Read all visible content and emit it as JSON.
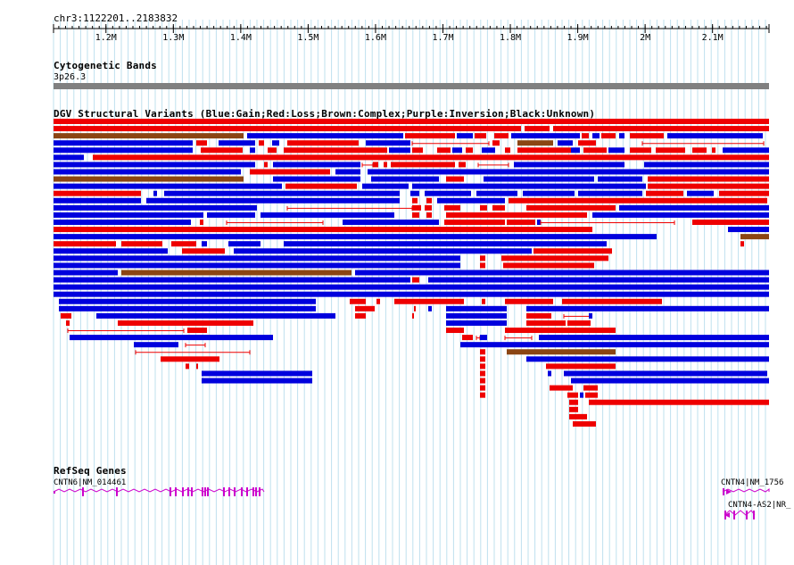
{
  "locus": "chr3:1122201..2183832",
  "ruler": {
    "ticks": [
      {
        "pos": 1200000,
        "label": "1.2M"
      },
      {
        "pos": 1300000,
        "label": "1.3M"
      },
      {
        "pos": 1400000,
        "label": "1.4M"
      },
      {
        "pos": 1500000,
        "label": "1.5M"
      },
      {
        "pos": 1600000,
        "label": "1.6M"
      },
      {
        "pos": 1700000,
        "label": "1.7M"
      },
      {
        "pos": 1800000,
        "label": "1.8M"
      },
      {
        "pos": 1900000,
        "label": "1.9M"
      },
      {
        "pos": 2000000,
        "label": "2M"
      },
      {
        "pos": 2100000,
        "label": "2.1M"
      }
    ]
  },
  "cytoband": {
    "title": "Cytogenetic Bands",
    "band": "3p26.3",
    "color": "#808080"
  },
  "dgv": {
    "title": "DGV Structural Variants (Blue:Gain;Red:Loss;Brown:Complex;Purple:Inversion;Black:Unknown)",
    "colors": {
      "gain": "#0000dd",
      "loss": "#ee0000",
      "complex": "#8b4513",
      "inversion": "#800080",
      "unknown": "#000000"
    },
    "rows": [
      [
        [
          "loss",
          60,
          862
        ]
      ],
      [
        [
          "loss",
          60,
          584
        ],
        [
          "loss",
          588,
          616
        ],
        [
          "loss",
          620,
          862
        ]
      ],
      [
        [
          "complex",
          60,
          273
        ],
        [
          "gain",
          277,
          452
        ],
        [
          "loss",
          454,
          510
        ],
        [
          "gain",
          512,
          530
        ],
        [
          "loss",
          532,
          545
        ],
        [
          "loss",
          554,
          570
        ],
        [
          "gain",
          573,
          650
        ],
        [
          "loss",
          652,
          660
        ],
        [
          "gain",
          664,
          672
        ],
        [
          "loss",
          674,
          690
        ],
        [
          "gain",
          694,
          700
        ],
        [
          "loss",
          706,
          744
        ],
        [
          "gain",
          748,
          855
        ]
      ],
      [
        [
          "gain",
          60,
          216
        ],
        [
          "loss",
          220,
          232
        ],
        [
          "gain",
          245,
          286
        ],
        [
          "loss",
          290,
          296
        ],
        [
          "gain",
          305,
          313
        ],
        [
          "loss",
          322,
          402
        ],
        [
          "gain",
          410,
          460
        ],
        [
          "thin",
          462,
          548
        ],
        [
          "loss",
          552,
          560
        ],
        [
          "complex",
          580,
          620
        ],
        [
          "gain",
          625,
          642
        ],
        [
          "loss",
          648,
          668
        ],
        [
          "thin",
          720,
          856
        ]
      ],
      [
        [
          "gain",
          60,
          216
        ],
        [
          "loss",
          225,
          272
        ],
        [
          "gain",
          280,
          286
        ],
        [
          "loss",
          300,
          310
        ],
        [
          "loss",
          318,
          434
        ],
        [
          "gain",
          436,
          460
        ],
        [
          "loss",
          462,
          474
        ],
        [
          "loss",
          490,
          505
        ],
        [
          "gain",
          507,
          518
        ],
        [
          "loss",
          522,
          530
        ],
        [
          "gain",
          540,
          555
        ],
        [
          "loss",
          566,
          572
        ],
        [
          "loss",
          580,
          640
        ],
        [
          "gain",
          640,
          650
        ],
        [
          "loss",
          654,
          680
        ],
        [
          "gain",
          682,
          700
        ],
        [
          "loss",
          706,
          730
        ],
        [
          "loss",
          735,
          768
        ],
        [
          "loss",
          776,
          792
        ],
        [
          "loss",
          798,
          802
        ],
        [
          "gain",
          810,
          862
        ]
      ],
      [
        [
          "gain",
          60,
          94
        ],
        [
          "loss",
          104,
          862
        ]
      ],
      [
        [
          "gain",
          60,
          286
        ],
        [
          "loss",
          296,
          300
        ],
        [
          "gain",
          306,
          404
        ],
        [
          "thin",
          406,
          418
        ],
        [
          "loss",
          418,
          424
        ],
        [
          "loss",
          430,
          434
        ],
        [
          "loss",
          438,
          510
        ],
        [
          "loss",
          514,
          522
        ],
        [
          "thin",
          536,
          570
        ],
        [
          "gain",
          576,
          700
        ],
        [
          "gain",
          722,
          862
        ]
      ],
      [
        [
          "gain",
          60,
          270
        ],
        [
          "loss",
          280,
          370
        ],
        [
          "gain",
          376,
          404
        ],
        [
          "gain",
          412,
          862
        ]
      ],
      [
        [
          "complex",
          60,
          273
        ],
        [
          "gain",
          306,
          404
        ],
        [
          "gain",
          416,
          492
        ],
        [
          "loss",
          500,
          520
        ],
        [
          "gain",
          542,
          666
        ],
        [
          "gain",
          670,
          720
        ],
        [
          "loss",
          726,
          862
        ]
      ],
      [
        [
          "gain",
          60,
          316
        ],
        [
          "loss",
          320,
          400
        ],
        [
          "gain",
          406,
          458
        ],
        [
          "gain",
          462,
          724
        ],
        [
          "loss",
          726,
          862
        ]
      ],
      [
        [
          "loss",
          60,
          158
        ],
        [
          "gain",
          172,
          176
        ],
        [
          "gain",
          184,
          448
        ],
        [
          "gain",
          460,
          470
        ],
        [
          "gain",
          476,
          528
        ],
        [
          "gain",
          534,
          580
        ],
        [
          "gain",
          586,
          644
        ],
        [
          "gain",
          648,
          720
        ],
        [
          "loss",
          724,
          766
        ],
        [
          "gain",
          770,
          800
        ],
        [
          "loss",
          806,
          862
        ]
      ],
      [
        [
          "gain",
          60,
          158
        ],
        [
          "gain",
          164,
          448
        ],
        [
          "loss",
          462,
          468
        ],
        [
          "loss",
          478,
          484
        ],
        [
          "gain",
          490,
          566
        ],
        [
          "loss",
          570,
          860
        ]
      ],
      [
        [
          "gain",
          60,
          288
        ],
        [
          "thin",
          322,
          462
        ],
        [
          "loss",
          462,
          472
        ],
        [
          "loss",
          476,
          484
        ],
        [
          "loss",
          498,
          516
        ],
        [
          "loss",
          538,
          546
        ],
        [
          "loss",
          552,
          566
        ],
        [
          "loss",
          590,
          690
        ],
        [
          "gain",
          694,
          862
        ]
      ],
      [
        [
          "gain",
          60,
          228
        ],
        [
          "gain",
          232,
          286
        ],
        [
          "gain",
          292,
          442
        ],
        [
          "loss",
          462,
          470
        ],
        [
          "loss",
          478,
          484
        ],
        [
          "loss",
          500,
          658
        ],
        [
          "gain",
          664,
          862
        ]
      ],
      [
        [
          "gain",
          60,
          214
        ],
        [
          "loss",
          224,
          228
        ],
        [
          "thin",
          254,
          362
        ],
        [
          "gain",
          384,
          492
        ],
        [
          "loss",
          498,
          566
        ],
        [
          "loss",
          568,
          600
        ],
        [
          "gain",
          602,
          606
        ],
        [
          "thin",
          606,
          756
        ],
        [
          "loss",
          776,
          862
        ]
      ],
      [
        [
          "loss",
          60,
          664
        ],
        [
          "gain",
          816,
          862
        ]
      ],
      [
        [
          "gain",
          60,
          736
        ],
        [
          "complex",
          830,
          862
        ]
      ],
      [
        [
          "loss",
          60,
          130
        ],
        [
          "loss",
          136,
          182
        ],
        [
          "loss",
          192,
          220
        ],
        [
          "gain",
          226,
          232
        ],
        [
          "gain",
          256,
          292
        ],
        [
          "gain",
          318,
          680
        ],
        [
          "loss",
          830,
          834
        ]
      ],
      [
        [
          "gain",
          60,
          188
        ],
        [
          "loss",
          204,
          252
        ],
        [
          "gain",
          262,
          596
        ],
        [
          "loss",
          598,
          686
        ]
      ],
      [
        [
          "gain",
          60,
          516
        ],
        [
          "loss",
          538,
          544
        ],
        [
          "loss",
          562,
          682
        ]
      ],
      [
        [
          "gain",
          60,
          516
        ],
        [
          "loss",
          538,
          544
        ],
        [
          "loss",
          564,
          666
        ]
      ],
      [
        [
          "gain",
          60,
          132
        ],
        [
          "complex",
          136,
          394
        ],
        [
          "gain",
          398,
          862
        ]
      ],
      [
        [
          "gain",
          60,
          460
        ],
        [
          "loss",
          462,
          470
        ],
        [
          "gain",
          480,
          862
        ]
      ],
      [
        [
          "gain",
          60,
          862
        ]
      ],
      [
        [
          "gain",
          60,
          862
        ]
      ],
      [
        [
          "gain",
          66,
          354
        ],
        [
          "loss",
          392,
          410
        ],
        [
          "loss",
          422,
          426
        ],
        [
          "loss",
          442,
          520
        ],
        [
          "loss",
          540,
          544
        ],
        [
          "loss",
          566,
          620
        ],
        [
          "loss",
          630,
          634
        ],
        [
          "loss",
          634,
          742
        ]
      ],
      [
        [
          "gain",
          66,
          354
        ],
        [
          "loss",
          398,
          420
        ],
        [
          "loss",
          464,
          466
        ],
        [
          "gain",
          480,
          484
        ],
        [
          "gain",
          500,
          568
        ],
        [
          "gain",
          590,
          862
        ]
      ],
      [
        [
          "loss",
          68,
          80
        ],
        [
          "gain",
          108,
          376
        ],
        [
          "loss",
          398,
          410
        ],
        [
          "loss",
          462,
          464
        ],
        [
          "gain",
          500,
          568
        ],
        [
          "loss",
          590,
          618
        ],
        [
          "thin",
          632,
          662
        ],
        [
          "gain",
          660,
          664
        ]
      ],
      [
        [
          "loss",
          74,
          78
        ],
        [
          "loss",
          132,
          284
        ],
        [
          "gain",
          500,
          568
        ],
        [
          "loss",
          590,
          634
        ],
        [
          "loss",
          636,
          662
        ]
      ],
      [
        [
          "thin",
          76,
          206
        ],
        [
          "loss",
          210,
          232
        ],
        [
          "loss",
          500,
          520
        ],
        [
          "loss",
          566,
          690
        ]
      ],
      [
        [
          "gain",
          78,
          306
        ],
        [
          "loss",
          518,
          530
        ],
        [
          "thin",
          534,
          538
        ],
        [
          "gain",
          538,
          546
        ],
        [
          "thin",
          566,
          596
        ],
        [
          "gain",
          604,
          862
        ]
      ],
      [
        [
          "gain",
          150,
          200
        ],
        [
          "thin",
          208,
          230
        ],
        [
          "gain",
          516,
          862
        ]
      ],
      [
        [
          "thin",
          152,
          280
        ],
        [
          "loss",
          538,
          544
        ],
        [
          "complex",
          568,
          690
        ]
      ],
      [
        [
          "loss",
          180,
          246
        ],
        [
          "loss",
          538,
          544
        ],
        [
          "gain",
          590,
          862
        ]
      ],
      [
        [
          "loss",
          208,
          212
        ],
        [
          "loss",
          220,
          222
        ],
        [
          "loss",
          538,
          544
        ],
        [
          "loss",
          612,
          690
        ]
      ],
      [
        [
          "gain",
          226,
          350
        ],
        [
          "loss",
          538,
          544
        ],
        [
          "gain",
          614,
          618
        ],
        [
          "gain",
          632,
          860
        ]
      ],
      [
        [
          "gain",
          226,
          350
        ],
        [
          "loss",
          538,
          544
        ],
        [
          "gain",
          640,
          862
        ]
      ],
      [
        [
          "loss",
          538,
          544
        ],
        [
          "loss",
          616,
          642
        ],
        [
          "loss",
          654,
          670
        ]
      ],
      [
        [
          "loss",
          538,
          544
        ],
        [
          "loss",
          636,
          648
        ],
        [
          "gain",
          650,
          654
        ],
        [
          "loss",
          656,
          670
        ]
      ],
      [
        [
          "loss",
          638,
          648
        ],
        [
          "loss",
          660,
          862
        ]
      ],
      [
        [
          "loss",
          638,
          648
        ]
      ],
      [
        [
          "loss",
          638,
          658
        ]
      ],
      [
        [
          "loss",
          642,
          668
        ]
      ]
    ]
  },
  "genes": {
    "title": "RefSeq Genes",
    "color": "#cc00cc",
    "items": [
      {
        "label": "CNTN6|NM_014461",
        "start": 60,
        "end": 296,
        "strand": "+"
      },
      {
        "label": "CNTN4|NM_1756",
        "start": 810,
        "end": 862,
        "strand": "+"
      },
      {
        "label": "CNTN4-AS2|NR_",
        "start": 812,
        "end": 846,
        "strand": "-"
      }
    ]
  }
}
